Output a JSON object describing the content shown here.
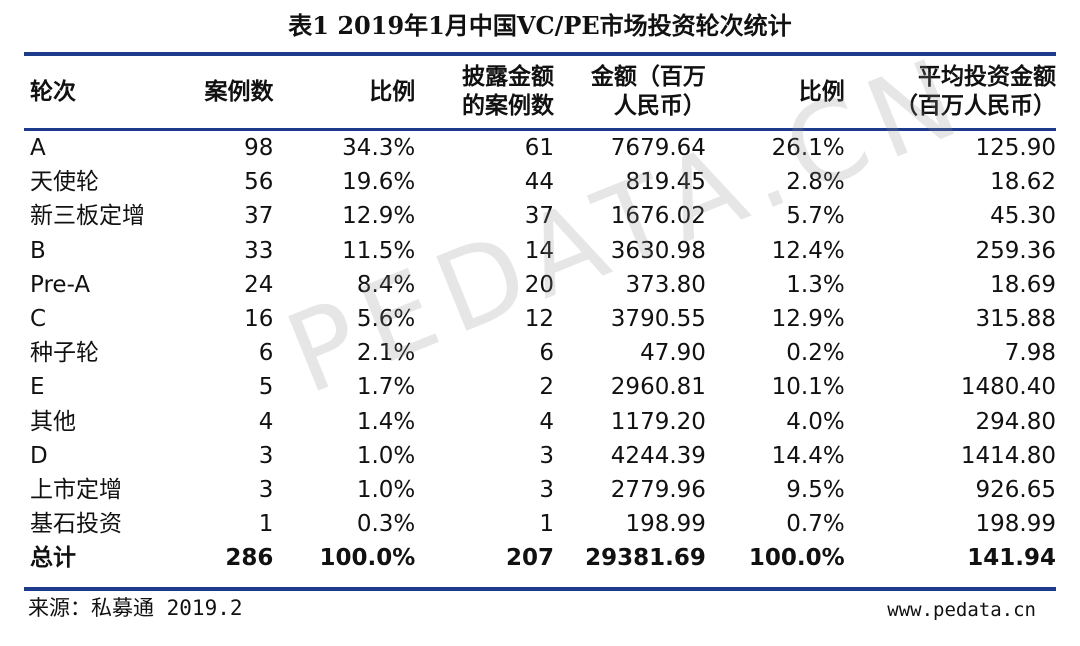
{
  "title": "表1  2019年1月中国VC/PE市场投资轮次统计",
  "headers": {
    "round": "轮次",
    "cases": "案例数",
    "ratio": "比例",
    "disclosed_1": "披露金额",
    "disclosed_2": "的案例数",
    "amount_1": "金额（百万",
    "amount_2": "人民币）",
    "amount_ratio": "比例",
    "avg_1": "平均投资金额",
    "avg_2": "（百万人民币）"
  },
  "rows": [
    {
      "round": "A",
      "cases": "98",
      "ratio": "34.3%",
      "disclosed": "61",
      "amount": "7679.64",
      "amount_ratio": "26.1%",
      "avg": "125.90"
    },
    {
      "round": "天使轮",
      "cases": "56",
      "ratio": "19.6%",
      "disclosed": "44",
      "amount": "819.45",
      "amount_ratio": "2.8%",
      "avg": "18.62"
    },
    {
      "round": "新三板定增",
      "cases": "37",
      "ratio": "12.9%",
      "disclosed": "37",
      "amount": "1676.02",
      "amount_ratio": "5.7%",
      "avg": "45.30"
    },
    {
      "round": "B",
      "cases": "33",
      "ratio": "11.5%",
      "disclosed": "14",
      "amount": "3630.98",
      "amount_ratio": "12.4%",
      "avg": "259.36"
    },
    {
      "round": "Pre-A",
      "cases": "24",
      "ratio": "8.4%",
      "disclosed": "20",
      "amount": "373.80",
      "amount_ratio": "1.3%",
      "avg": "18.69"
    },
    {
      "round": "C",
      "cases": "16",
      "ratio": "5.6%",
      "disclosed": "12",
      "amount": "3790.55",
      "amount_ratio": "12.9%",
      "avg": "315.88"
    },
    {
      "round": "种子轮",
      "cases": "6",
      "ratio": "2.1%",
      "disclosed": "6",
      "amount": "47.90",
      "amount_ratio": "0.2%",
      "avg": "7.98"
    },
    {
      "round": "E",
      "cases": "5",
      "ratio": "1.7%",
      "disclosed": "2",
      "amount": "2960.81",
      "amount_ratio": "10.1%",
      "avg": "1480.40"
    },
    {
      "round": "其他",
      "cases": "4",
      "ratio": "1.4%",
      "disclosed": "4",
      "amount": "1179.20",
      "amount_ratio": "4.0%",
      "avg": "294.80"
    },
    {
      "round": "D",
      "cases": "3",
      "ratio": "1.0%",
      "disclosed": "3",
      "amount": "4244.39",
      "amount_ratio": "14.4%",
      "avg": "1414.80"
    },
    {
      "round": "上市定增",
      "cases": "3",
      "ratio": "1.0%",
      "disclosed": "3",
      "amount": "2779.96",
      "amount_ratio": "9.5%",
      "avg": "926.65"
    },
    {
      "round": "基石投资",
      "cases": "1",
      "ratio": "0.3%",
      "disclosed": "1",
      "amount": "198.99",
      "amount_ratio": "0.7%",
      "avg": "198.99"
    }
  ],
  "total": {
    "round": "总计",
    "cases": "286",
    "ratio": "100.0%",
    "disclosed": "207",
    "amount": "29381.69",
    "amount_ratio": "100.0%",
    "avg": "141.94"
  },
  "source": "来源：私募通 2019.2",
  "site": "www.pedata.cn",
  "watermark": "PEDATA.CN",
  "colors": {
    "rule": "#1e3a8c"
  }
}
